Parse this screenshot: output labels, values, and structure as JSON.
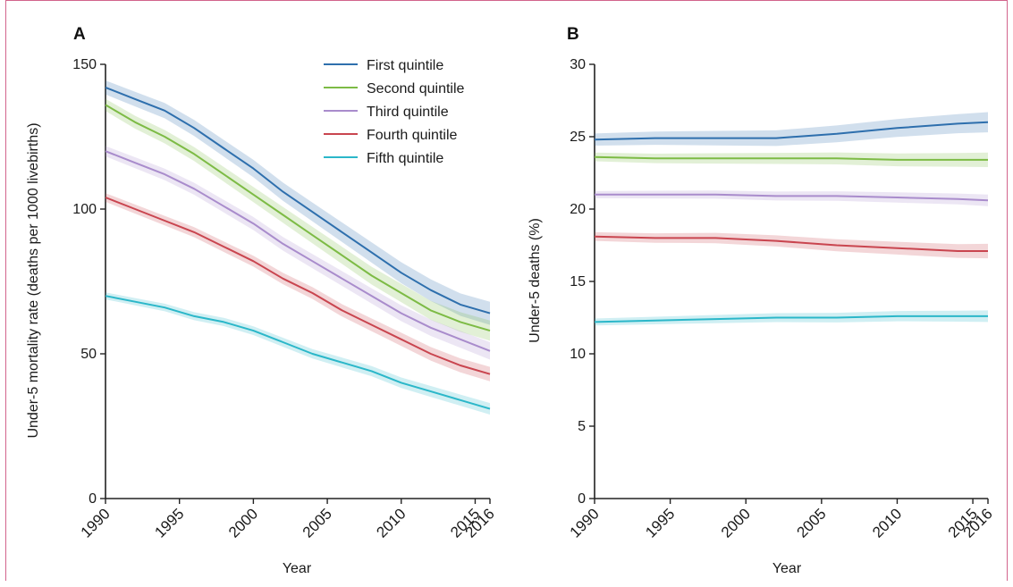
{
  "colors": {
    "First quintile": "#2e6fad",
    "Second quintile": "#7dbb45",
    "Third quintile": "#a98ccc",
    "Fourth quintile": "#c9454f",
    "Fifth quintile": "#2bb7c9"
  },
  "chart_data": [
    {
      "panel": "A",
      "type": "line",
      "xlabel": "Year",
      "ylabel": "Under-5 mortality rate (deaths per 1000 livebirths)",
      "xticks": [
        1990,
        1995,
        2000,
        2005,
        2010,
        2015,
        2016
      ],
      "yticks": [
        0,
        50,
        100,
        150
      ],
      "xlim": [
        1990,
        2016
      ],
      "ylim": [
        0,
        150
      ],
      "legend_position": "top-right",
      "series": [
        {
          "name": "First quintile",
          "x": [
            1990,
            1992,
            1994,
            1996,
            1998,
            2000,
            2002,
            2004,
            2006,
            2008,
            2010,
            2012,
            2014,
            2016
          ],
          "y": [
            142,
            138,
            134,
            128,
            121,
            114,
            106,
            99,
            92,
            85,
            78,
            72,
            67,
            64
          ],
          "band": 4
        },
        {
          "name": "Second quintile",
          "x": [
            1990,
            1992,
            1994,
            1996,
            1998,
            2000,
            2002,
            2004,
            2006,
            2008,
            2010,
            2012,
            2014,
            2016
          ],
          "y": [
            136,
            130,
            125,
            119,
            112,
            105,
            98,
            91,
            84,
            77,
            71,
            65,
            61,
            58
          ],
          "band": 3.5
        },
        {
          "name": "Third quintile",
          "x": [
            1990,
            1992,
            1994,
            1996,
            1998,
            2000,
            2002,
            2004,
            2006,
            2008,
            2010,
            2012,
            2014,
            2016
          ],
          "y": [
            120,
            116,
            112,
            107,
            101,
            95,
            88,
            82,
            76,
            70,
            64,
            59,
            55,
            51
          ],
          "band": 3
        },
        {
          "name": "Fourth quintile",
          "x": [
            1990,
            1992,
            1994,
            1996,
            1998,
            2000,
            2002,
            2004,
            2006,
            2008,
            2010,
            2012,
            2014,
            2016
          ],
          "y": [
            104,
            100,
            96,
            92,
            87,
            82,
            76,
            71,
            65,
            60,
            55,
            50,
            46,
            43
          ],
          "band": 2.5
        },
        {
          "name": "Fifth quintile",
          "x": [
            1990,
            1992,
            1994,
            1996,
            1998,
            2000,
            2002,
            2004,
            2006,
            2008,
            2010,
            2012,
            2014,
            2016
          ],
          "y": [
            70,
            68,
            66,
            63,
            61,
            58,
            54,
            50,
            47,
            44,
            40,
            37,
            34,
            31
          ],
          "band": 2
        }
      ]
    },
    {
      "panel": "B",
      "type": "line",
      "xlabel": "Year",
      "ylabel": "Under-5 deaths (%)",
      "xticks": [
        1990,
        1995,
        2000,
        2005,
        2010,
        2015,
        2016
      ],
      "yticks": [
        0,
        5,
        10,
        15,
        20,
        25,
        30
      ],
      "xlim": [
        1990,
        2016
      ],
      "ylim": [
        0,
        30
      ],
      "series": [
        {
          "name": "First quintile",
          "x": [
            1990,
            1994,
            1998,
            2002,
            2006,
            2010,
            2014,
            2016
          ],
          "y": [
            24.8,
            24.9,
            24.9,
            24.9,
            25.2,
            25.6,
            25.9,
            26.0
          ],
          "band": 0.7
        },
        {
          "name": "Second quintile",
          "x": [
            1990,
            1994,
            1998,
            2002,
            2006,
            2010,
            2014,
            2016
          ],
          "y": [
            23.6,
            23.5,
            23.5,
            23.5,
            23.5,
            23.4,
            23.4,
            23.4
          ],
          "band": 0.5
        },
        {
          "name": "Third quintile",
          "x": [
            1990,
            1994,
            1998,
            2002,
            2006,
            2010,
            2014,
            2016
          ],
          "y": [
            21.0,
            21.0,
            21.0,
            20.9,
            20.9,
            20.8,
            20.7,
            20.6
          ],
          "band": 0.4
        },
        {
          "name": "Fourth quintile",
          "x": [
            1990,
            1994,
            1998,
            2002,
            2006,
            2010,
            2014,
            2016
          ],
          "y": [
            18.1,
            18.0,
            18.0,
            17.8,
            17.5,
            17.3,
            17.1,
            17.1
          ],
          "band": 0.5
        },
        {
          "name": "Fifth quintile",
          "x": [
            1990,
            1994,
            1998,
            2002,
            2006,
            2010,
            2014,
            2016
          ],
          "y": [
            12.2,
            12.3,
            12.4,
            12.5,
            12.5,
            12.6,
            12.6,
            12.6
          ],
          "band": 0.4
        }
      ]
    }
  ]
}
